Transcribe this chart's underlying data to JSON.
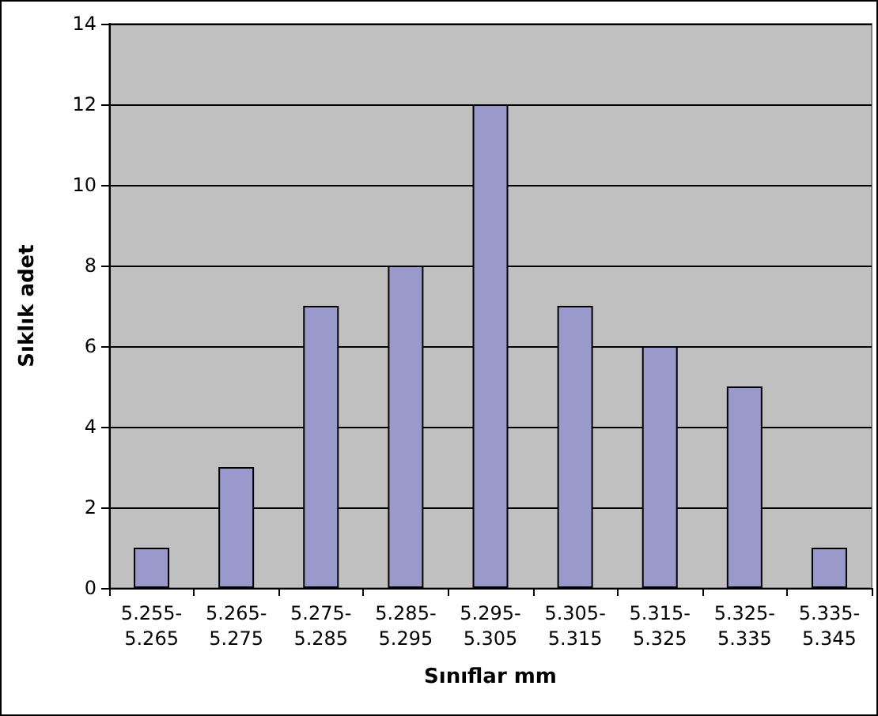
{
  "chart_data": {
    "type": "bar",
    "xlabel": "Sınıflar mm",
    "ylabel": "Sıklık adet",
    "categories": [
      "5.255-5.265",
      "5.265-5.275",
      "5.275-5.285",
      "5.285-5.295",
      "5.295-5.305",
      "5.305-5.315",
      "5.315-5.325",
      "5.325-5.335",
      "5.335-5.345"
    ],
    "values": [
      1,
      3,
      7,
      8,
      12,
      7,
      6,
      5,
      1
    ],
    "color": "#9999cc",
    "ylim": [
      0,
      14
    ],
    "yticks": [
      0,
      2,
      4,
      6,
      8,
      10,
      12,
      14
    ],
    "grid": "y"
  }
}
